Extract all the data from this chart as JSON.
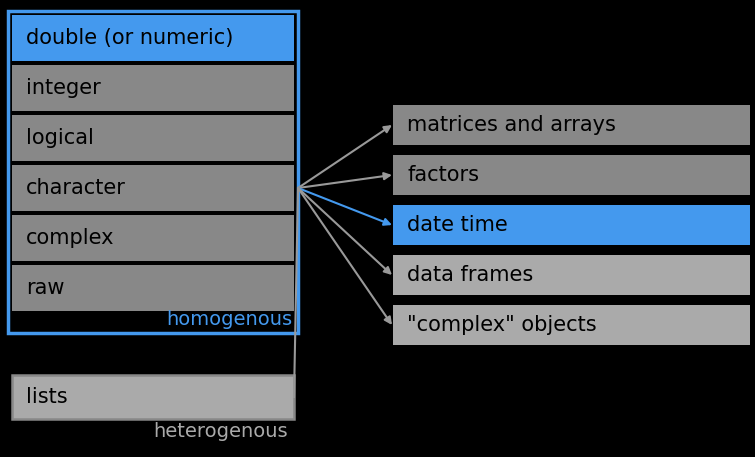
{
  "background_color": "#000000",
  "left_box_border_color": "#4499ee",
  "left_items": [
    "double (or numeric)",
    "integer",
    "logical",
    "character",
    "complex",
    "raw"
  ],
  "left_item_colors": [
    "#4499ee",
    "#888888",
    "#888888",
    "#888888",
    "#888888",
    "#888888"
  ],
  "left_item_text_colors": [
    "#000000",
    "#000000",
    "#000000",
    "#000000",
    "#000000",
    "#000000"
  ],
  "homogenous_label": "homogenous",
  "homogenous_color": "#4499ee",
  "right_items": [
    "matrices and arrays",
    "factors",
    "date time",
    "data frames",
    "\"complex\" objects"
  ],
  "right_item_colors": [
    "#888888",
    "#888888",
    "#4499ee",
    "#aaaaaa",
    "#aaaaaa"
  ],
  "right_item_text_colors": [
    "#000000",
    "#000000",
    "#000000",
    "#000000",
    "#000000"
  ],
  "lists_label": "lists",
  "lists_border_color": "#888888",
  "lists_bg_color": "#aaaaaa",
  "heterogenous_label": "heterogenous",
  "heterogenous_color": "#aaaaaa",
  "arrow_color_gray": "#999999",
  "arrow_color_blue": "#4499ee",
  "font_size": 15
}
